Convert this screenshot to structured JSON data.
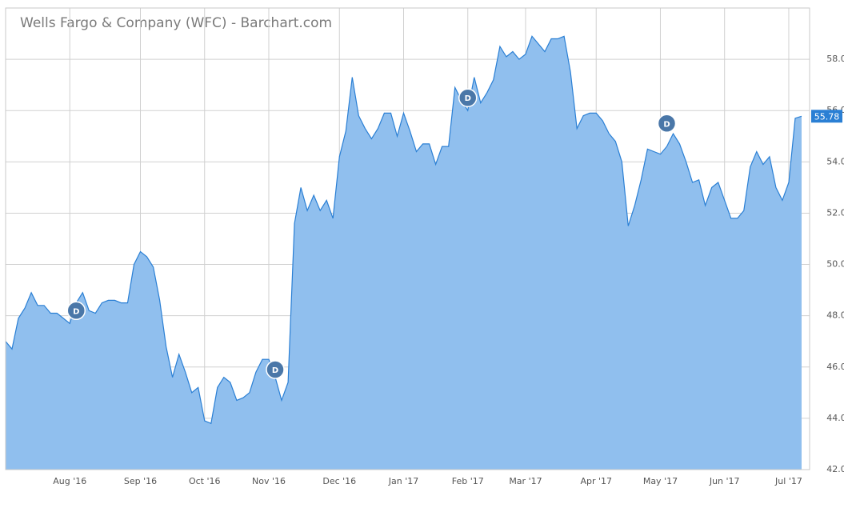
{
  "chart_data": {
    "type": "area",
    "title": "Wells Fargo & Company (WFC) - Barchart.com",
    "categories": [
      null,
      null,
      null,
      null,
      null,
      null,
      null,
      null,
      null,
      null,
      "Aug '16",
      null,
      null,
      null,
      null,
      null,
      null,
      null,
      null,
      null,
      null,
      "Sep '16",
      null,
      null,
      null,
      null,
      null,
      null,
      null,
      null,
      null,
      "Oct '16",
      null,
      null,
      null,
      null,
      null,
      null,
      null,
      null,
      null,
      "Nov '16",
      null,
      null,
      null,
      null,
      null,
      null,
      null,
      null,
      null,
      null,
      "Dec '16",
      null,
      null,
      null,
      null,
      null,
      null,
      null,
      null,
      null,
      "Jan '17",
      null,
      null,
      null,
      null,
      null,
      null,
      null,
      null,
      null,
      "Feb '17",
      null,
      null,
      null,
      null,
      null,
      null,
      null,
      null,
      "Mar '17",
      null,
      null,
      null,
      null,
      null,
      null,
      null,
      null,
      null,
      null,
      "Apr '17",
      null,
      null,
      null,
      null,
      null,
      null,
      null,
      null,
      null,
      "May '17",
      null,
      null,
      null,
      null,
      null,
      null,
      null,
      null,
      null,
      "Jun '17",
      null,
      null,
      null,
      null,
      null,
      null,
      null,
      null,
      null,
      "Jul '17",
      null,
      null
    ],
    "values": [
      47.0,
      46.7,
      47.9,
      48.3,
      48.9,
      48.4,
      48.4,
      48.1,
      48.1,
      47.9,
      47.7,
      48.5,
      48.9,
      48.2,
      48.1,
      48.5,
      48.6,
      48.6,
      48.5,
      48.5,
      50.0,
      50.5,
      50.3,
      49.9,
      48.6,
      46.8,
      45.6,
      46.5,
      45.8,
      45.0,
      45.2,
      43.9,
      43.8,
      45.2,
      45.6,
      45.4,
      44.7,
      44.8,
      45.0,
      45.8,
      46.3,
      46.3,
      45.6,
      44.7,
      45.4,
      51.6,
      53.0,
      52.1,
      52.7,
      52.1,
      52.5,
      51.8,
      54.2,
      55.2,
      57.3,
      55.8,
      55.3,
      54.9,
      55.3,
      55.9,
      55.9,
      55.0,
      55.9,
      55.2,
      54.4,
      54.7,
      54.7,
      53.9,
      54.6,
      54.6,
      56.9,
      56.4,
      56.0,
      57.3,
      56.3,
      56.7,
      57.2,
      58.5,
      58.1,
      58.3,
      58.0,
      58.2,
      58.9,
      58.6,
      58.3,
      58.8,
      58.8,
      58.9,
      57.5,
      55.3,
      55.8,
      55.9,
      55.9,
      55.6,
      55.1,
      54.8,
      54.0,
      51.5,
      52.3,
      53.3,
      54.5,
      54.4,
      54.3,
      54.6,
      55.1,
      54.7,
      54.0,
      53.2,
      53.3,
      52.3,
      53.0,
      53.2,
      52.5,
      51.8,
      51.8,
      52.1,
      53.8,
      54.4,
      53.9,
      54.2,
      53.0,
      52.5,
      53.2,
      55.7,
      55.78
    ],
    "color": "#90bfee",
    "line_color": "#2a7fd4",
    "ylim": [
      42,
      60
    ],
    "yticks": [
      {
        "value": 42,
        "label": "42.00"
      },
      {
        "value": 44,
        "label": "44.00"
      },
      {
        "value": 46,
        "label": "46.00"
      },
      {
        "value": 48,
        "label": "48.00"
      },
      {
        "value": 50,
        "label": "50.00"
      },
      {
        "value": 52,
        "label": "52.00"
      },
      {
        "value": 54,
        "label": "54.00"
      },
      {
        "value": 56,
        "label": "56.00"
      },
      {
        "value": 58,
        "label": "58.00"
      }
    ],
    "grid": true,
    "last_price": 55.78,
    "markers": [
      {
        "index": 11,
        "value": 48.2,
        "label": "D"
      },
      {
        "index": 42,
        "value": 45.9,
        "label": "D"
      },
      {
        "index": 72,
        "value": 56.5,
        "label": "D"
      },
      {
        "index": 103,
        "value": 55.5,
        "label": "D"
      }
    ]
  }
}
